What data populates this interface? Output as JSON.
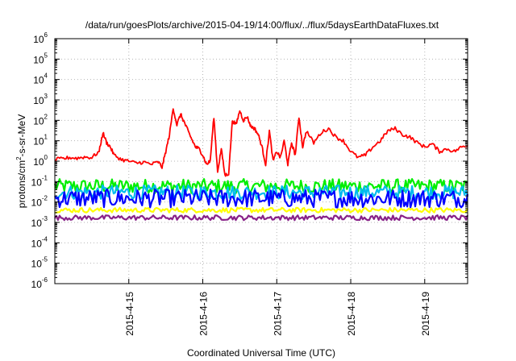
{
  "chart_data": {
    "type": "line",
    "title": "/data/run/goesPlots/archive/2015-04-19/14:00/flux/../flux/5daysEarthDataFluxes.txt",
    "xlabel": "Coordinated Universal Time (UTC)",
    "ylabel": {
      "base": "protons/cm",
      "sup": "2",
      "rest": "-s-sr-MeV"
    },
    "yscale": "log",
    "ylim_exponent": [
      -6,
      6
    ],
    "ytick_exponents": [
      -6,
      -5,
      -4,
      -3,
      -2,
      -1,
      0,
      1,
      2,
      3,
      4,
      5,
      6
    ],
    "xlim_days": [
      "2015-04-14T00:00",
      "2015-04-19T14:00"
    ],
    "xtick_labels": [
      "2015-4-15",
      "2015-4-16",
      "2015-4-17",
      "2015-4-18",
      "2015-4-19"
    ],
    "grid": true,
    "series": [
      {
        "color": "#ff0000",
        "band": false,
        "x": [
          14.0,
          14.1,
          14.2,
          14.3,
          14.4,
          14.5,
          14.6,
          14.65,
          14.7,
          14.75,
          14.8,
          14.9,
          15.0,
          15.1,
          15.2,
          15.3,
          15.4,
          15.45,
          15.5,
          15.55,
          15.6,
          15.65,
          15.7,
          15.75,
          15.8,
          15.85,
          15.9,
          15.95,
          16.0,
          16.05,
          16.1,
          16.15,
          16.2,
          16.25,
          16.3,
          16.35,
          16.4,
          16.45,
          16.5,
          16.55,
          16.6,
          16.65,
          16.7,
          16.75,
          16.8,
          16.85,
          16.9,
          16.95,
          17.0,
          17.05,
          17.1,
          17.15,
          17.2,
          17.25,
          17.3,
          17.35,
          17.4,
          17.5,
          17.6,
          17.7,
          17.8,
          17.9,
          18.0,
          18.1,
          18.2,
          18.3,
          18.4,
          18.5,
          18.6,
          18.7,
          18.8,
          18.9,
          19.0,
          19.1,
          19.2,
          19.3,
          19.4,
          19.5,
          19.58
        ],
        "y": [
          1.2,
          1.3,
          1.5,
          1.4,
          1.6,
          1.5,
          3.0,
          25.0,
          8.0,
          5.0,
          2.0,
          1.2,
          1.0,
          0.8,
          0.9,
          0.7,
          0.9,
          0.5,
          3.0,
          20.0,
          400.0,
          60.0,
          200.0,
          80.0,
          30.0,
          12.0,
          5.0,
          4.0,
          2.0,
          0.7,
          1.0,
          150.0,
          0.3,
          4.0,
          0.2,
          0.25,
          100.0,
          60.0,
          300.0,
          100.0,
          150.0,
          50.0,
          40.0,
          20.0,
          5.0,
          0.7,
          30.0,
          1.0,
          3.0,
          1.5,
          10.0,
          0.7,
          8.0,
          2.0,
          150.0,
          5.0,
          30.0,
          8.0,
          25.0,
          40.0,
          15.0,
          10.0,
          3.0,
          1.5,
          2.0,
          5.0,
          10.0,
          30.0,
          40.0,
          20.0,
          15.0,
          8.0,
          5.0,
          7.0,
          3.0,
          4.0,
          3.0,
          5.0,
          6.0
        ]
      },
      {
        "color": "#00ee00",
        "band": true,
        "center": 0.06,
        "spread": 0.35
      },
      {
        "color": "#00bbee",
        "band": true,
        "center": 0.03,
        "spread": 0.35
      },
      {
        "color": "#0000ff",
        "band": true,
        "center": 0.015,
        "spread": 0.45
      },
      {
        "color": "#ffff00",
        "band": true,
        "center": 0.004,
        "spread": 0.12
      },
      {
        "color": "#882288",
        "band": true,
        "center": 0.0017,
        "spread": 0.12
      }
    ]
  }
}
